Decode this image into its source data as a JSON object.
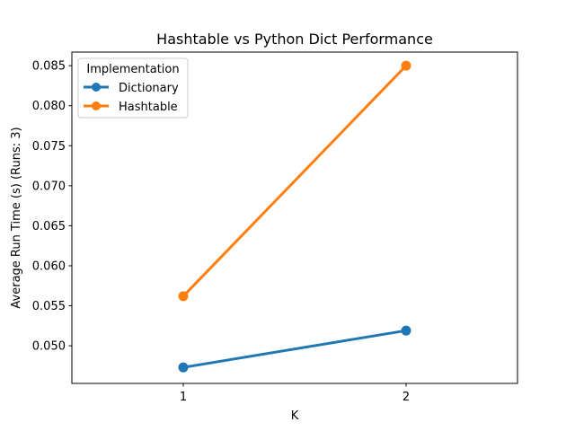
{
  "chart_data": {
    "type": "line",
    "title": "Hashtable vs Python Dict Performance",
    "xlabel": "K",
    "ylabel": "Average Run Time (s) (Runs: 3)",
    "categories": [
      "1",
      "2"
    ],
    "xlim": [
      0.5,
      2.5
    ],
    "ylim": [
      0.0453,
      0.0867
    ],
    "yticks": [
      "0.050",
      "0.055",
      "0.060",
      "0.065",
      "0.070",
      "0.075",
      "0.080",
      "0.085"
    ],
    "series": [
      {
        "name": "Dictionary",
        "color": "#1f77b4",
        "values": [
          0.0473,
          0.0519
        ]
      },
      {
        "name": "Hashtable",
        "color": "#ff7f0e",
        "values": [
          0.0562,
          0.085
        ]
      }
    ],
    "legend": {
      "title": "Implementation",
      "position": "upper-left"
    },
    "grid": false
  }
}
